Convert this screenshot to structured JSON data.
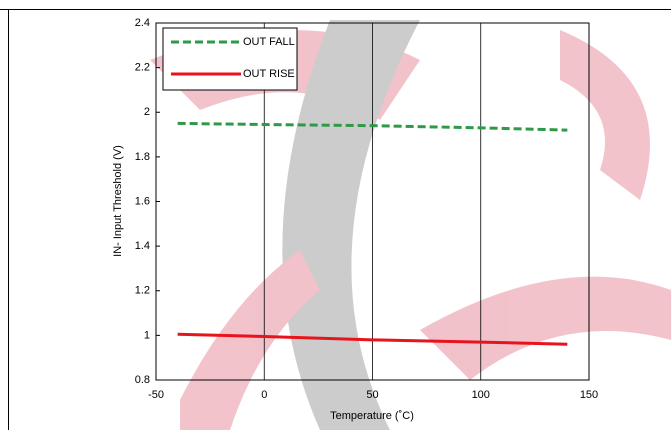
{
  "chart_data": {
    "type": "line",
    "x_label": "Temperature (˚C)",
    "y_label": "IN- Input Threshold (V)",
    "x": [
      -40,
      0,
      50,
      100,
      140
    ],
    "series": [
      {
        "name": "OUT FALL",
        "color": "#2e9a48",
        "dashed": true,
        "values": [
          1.95,
          1.945,
          1.94,
          1.93,
          1.92
        ]
      },
      {
        "name": "OUT RISE",
        "color": "#e8141c",
        "dashed": false,
        "values": [
          1.005,
          0.995,
          0.98,
          0.97,
          0.96
        ]
      }
    ],
    "xlim": [
      -50,
      150
    ],
    "xticks": [
      -50,
      0,
      50,
      100,
      150
    ],
    "ylim": [
      0.8,
      2.4
    ],
    "yticks": [
      0.8,
      1,
      1.2,
      1.4,
      1.6,
      1.8,
      2,
      2.2,
      2.4
    ],
    "grid": "x",
    "legend": "top-left"
  }
}
